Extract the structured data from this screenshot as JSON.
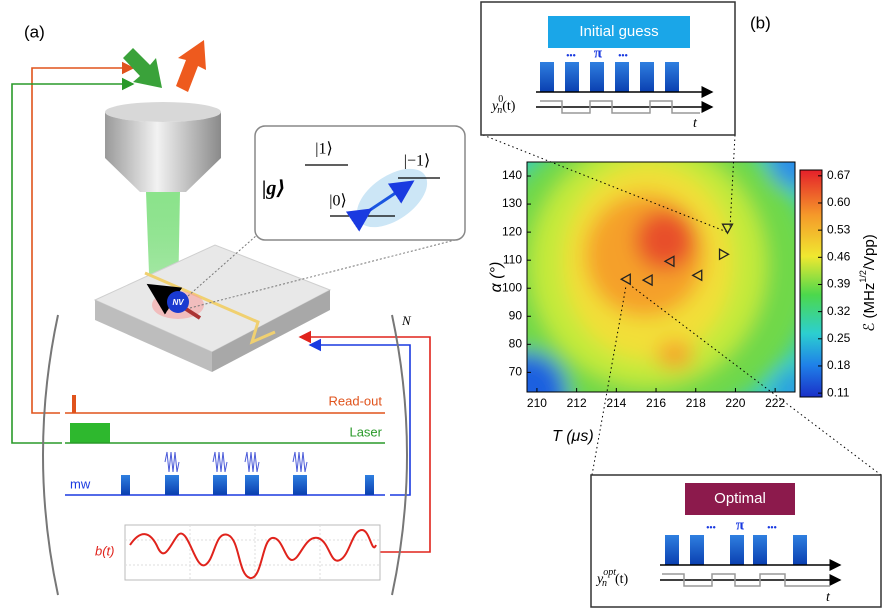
{
  "panel_a": {
    "label": "(a)",
    "inset": {
      "g": "|g⟩",
      "one": "|1⟩",
      "minus_one": "|−1⟩",
      "zero": "|0⟩"
    },
    "nv": "NV",
    "repeat": "N",
    "channels": {
      "readout": "Read-out",
      "laser": "Laser",
      "mw": "mw",
      "b": "b(t)"
    }
  },
  "panel_b": {
    "label": "(b)",
    "initial": {
      "title": "Initial guess",
      "dots": "•••",
      "pi": "π",
      "y": "y",
      "sub": "n",
      "sup": "0",
      "arg": "(t)",
      "t": "t"
    },
    "optimal": {
      "title": "Optimal",
      "dots": "•••",
      "pi": "π",
      "y": "y",
      "sub": "n",
      "sup": "opt",
      "arg": "(t)",
      "t": "t"
    },
    "map": {
      "x_label": "T (μs)",
      "y_label": "α (°)",
      "cbar_label": {
        "pre": "ℰ (MHz",
        "sup": "1/2",
        "post": "/Vpp)"
      },
      "xlim": [
        209.5,
        223
      ],
      "ylim": [
        63,
        145
      ],
      "xticks": [
        210,
        212,
        214,
        216,
        218,
        220,
        222
      ],
      "yticks": [
        70,
        80,
        90,
        100,
        110,
        120,
        130,
        140
      ],
      "clim": [
        0.1,
        0.685
      ],
      "cticks": [
        0.11,
        0.18,
        0.25,
        0.32,
        0.39,
        0.46,
        0.53,
        {
          "value": 0.6,
          "label": "0.60"
        },
        0.67
      ],
      "points": [
        {
          "x": 214.5,
          "y": 103.2,
          "marker": "left"
        },
        {
          "x": 215.6,
          "y": 102.9,
          "marker": "left"
        },
        {
          "x": 216.7,
          "y": 109.6,
          "marker": "left"
        },
        {
          "x": 218.1,
          "y": 104.6,
          "marker": "left"
        },
        {
          "x": 219.4,
          "y": 112.1,
          "marker": "right"
        },
        {
          "x": 219.6,
          "y": 121.4,
          "marker": "down"
        }
      ]
    }
  }
}
